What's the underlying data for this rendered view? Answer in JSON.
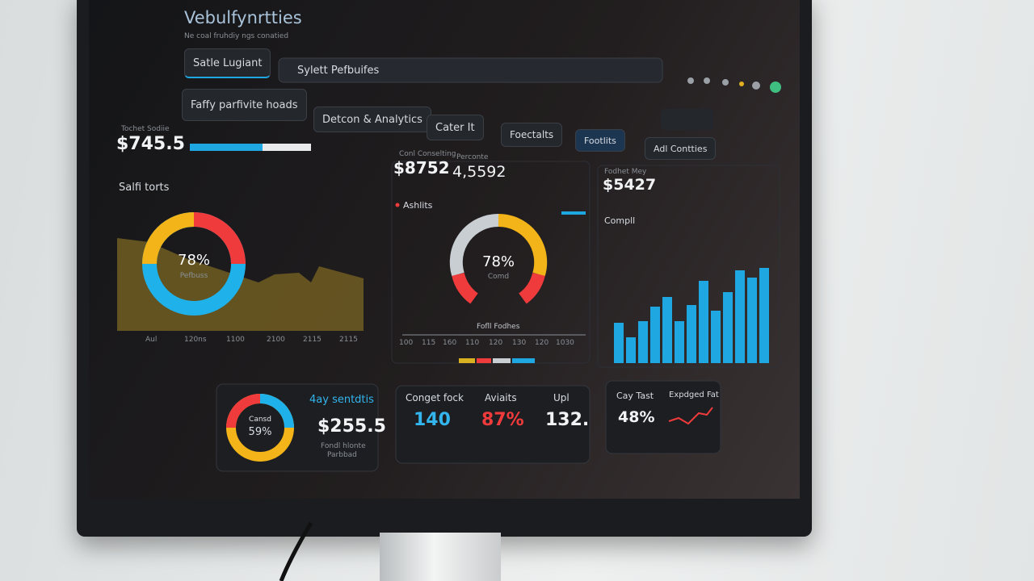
{
  "header": {
    "title": "Vebulfynrtties",
    "subtitle": "Ne coal fruhdiy ngs conatied"
  },
  "tabs": [
    "Satle Lugiant",
    "Sylett Pefbuifes"
  ],
  "nav": [
    "Faffy parfivite hoads",
    "Detcon & Analytics",
    "Cater It",
    "Foectalts",
    "Footlits",
    "Adl Contties"
  ],
  "panel_sales": {
    "label": "Tochet Sodiie",
    "value": "$745.5",
    "section": "Salfi torts",
    "donut_value": "78%",
    "donut_label": "Pefbuss",
    "axis": [
      "Aul",
      "120ns",
      "1100",
      "2100",
      "2115",
      "2115"
    ]
  },
  "panel_analytics": {
    "stat1_label": "Conl Conselting",
    "stat1_value": "$8752",
    "stat2_label": "Perconte",
    "stat2_value": "4,5592",
    "section": "Ashlits",
    "gauge_value": "78%",
    "gauge_label": "Comd",
    "axis_title": "Fofll Fodhes",
    "axis": [
      "100",
      "115",
      "160",
      "110",
      "120",
      "130",
      "120",
      "1030"
    ]
  },
  "panel_bars": {
    "label": "Fodhet Mey",
    "value": "$5427",
    "section": "Compll"
  },
  "cards": {
    "donut_label": "Cansd",
    "donut_value": "59%",
    "title": "4ay sentdtis",
    "value": "$255.5",
    "line1": "Fondl hlonte",
    "line2": "Parbbad",
    "metrics": [
      {
        "label": "Conget fock",
        "value": "140"
      },
      {
        "label": "Aviaits",
        "value": "87%"
      },
      {
        "label": "Upl",
        "value": "132."
      }
    ],
    "rate_label": "Cay Tast",
    "rate_value": "48%",
    "trend_label": "Expdged Fat"
  }
}
